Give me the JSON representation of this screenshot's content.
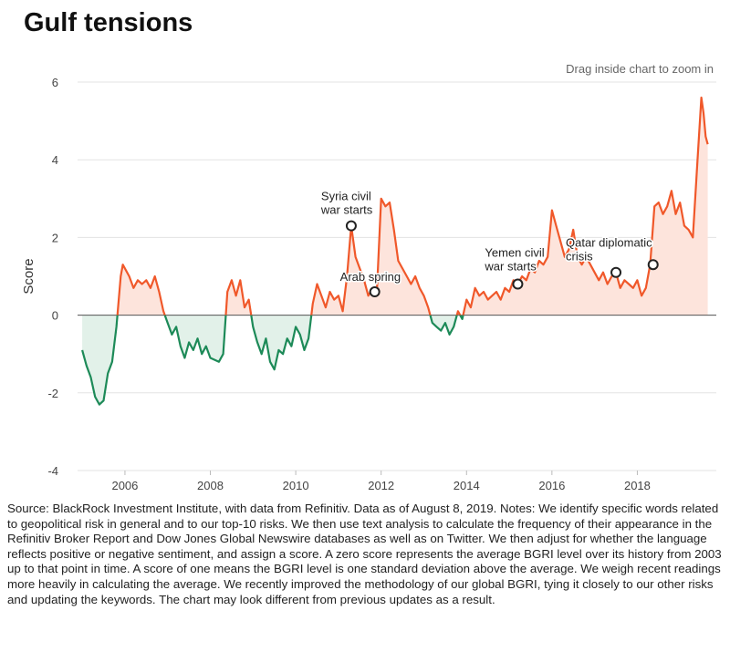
{
  "chart_data": {
    "type": "line",
    "title": "Gulf tensions",
    "hint": "Drag inside chart to zoom in",
    "y_label": "Score",
    "source": "Source: BlackRock Investment Institute, with data from Refinitiv. Data as of August 8, 2019. Notes: We identify specific words related to geopolitical risk in general and to our top-10 risks. We then use text analysis to calculate the frequency of their appearance in the Refinitiv Broker Report and Dow Jones Global Newswire databases as well as on Twitter. We then adjust for whether the language reflects positive or negative sentiment, and assign a score. A zero score represents the average BGRI level over its history from 2003 up to that point in time. A score of one means the BGRI level is one standard deviation above the average. We weigh recent readings more heavily in calculating the average. We recently improved the methodology of our global BGRI, tying it closely to our other risks and updating the keywords. The chart may look different from previous updates as a result.",
    "positive_color": "#f0582a",
    "positive_fill": "#fde4dc",
    "negative_color": "#1d8a58",
    "negative_fill": "#e2f1e9",
    "grid": true,
    "xlim": [
      2004.89,
      2019.85
    ],
    "xticks": [
      2006,
      2008,
      2010,
      2012,
      2014,
      2016,
      2018
    ],
    "ylim": [
      -4,
      6
    ],
    "yticks": [
      -4,
      -2,
      0,
      2,
      4,
      6
    ],
    "x": [
      2005.0,
      2005.1,
      2005.2,
      2005.3,
      2005.4,
      2005.5,
      2005.6,
      2005.7,
      2005.8,
      2005.9,
      2005.95,
      2006.1,
      2006.2,
      2006.3,
      2006.4,
      2006.5,
      2006.6,
      2006.7,
      2006.8,
      2006.9,
      2007.0,
      2007.1,
      2007.2,
      2007.3,
      2007.4,
      2007.5,
      2007.6,
      2007.7,
      2007.8,
      2007.9,
      2008.0,
      2008.2,
      2008.3,
      2008.4,
      2008.5,
      2008.6,
      2008.7,
      2008.8,
      2008.9,
      2009.0,
      2009.1,
      2009.2,
      2009.3,
      2009.4,
      2009.5,
      2009.6,
      2009.7,
      2009.8,
      2009.9,
      2010.0,
      2010.1,
      2010.2,
      2010.3,
      2010.4,
      2010.5,
      2010.6,
      2010.7,
      2010.8,
      2010.9,
      2011.0,
      2011.1,
      2011.2,
      2011.3,
      2011.4,
      2011.5,
      2011.6,
      2011.7,
      2011.8,
      2011.9,
      2012.0,
      2012.1,
      2012.2,
      2012.3,
      2012.4,
      2012.5,
      2012.6,
      2012.7,
      2012.8,
      2012.9,
      2013.0,
      2013.1,
      2013.2,
      2013.3,
      2013.4,
      2013.5,
      2013.6,
      2013.7,
      2013.8,
      2013.9,
      2014.0,
      2014.1,
      2014.2,
      2014.3,
      2014.4,
      2014.5,
      2014.6,
      2014.7,
      2014.8,
      2014.9,
      2015.0,
      2015.1,
      2015.2,
      2015.3,
      2015.4,
      2015.5,
      2015.6,
      2015.7,
      2015.8,
      2015.9,
      2016.0,
      2016.1,
      2016.2,
      2016.3,
      2016.4,
      2016.5,
      2016.6,
      2016.7,
      2016.8,
      2016.9,
      2017.0,
      2017.1,
      2017.2,
      2017.3,
      2017.4,
      2017.5,
      2017.6,
      2017.7,
      2017.8,
      2017.9,
      2018.0,
      2018.1,
      2018.2,
      2018.3,
      2018.4,
      2018.5,
      2018.6,
      2018.7,
      2018.8,
      2018.9,
      2019.0,
      2019.1,
      2019.2,
      2019.3,
      2019.4,
      2019.5,
      2019.55,
      2019.6,
      2019.65
    ],
    "values": [
      -0.9,
      -1.3,
      -1.6,
      -2.1,
      -2.3,
      -2.2,
      -1.5,
      -1.2,
      -0.3,
      1.0,
      1.3,
      1.0,
      0.7,
      0.9,
      0.8,
      0.9,
      0.7,
      1.0,
      0.6,
      0.1,
      -0.2,
      -0.5,
      -0.3,
      -0.8,
      -1.1,
      -0.7,
      -0.9,
      -0.6,
      -1.0,
      -0.8,
      -1.1,
      -1.2,
      -1.0,
      0.6,
      0.9,
      0.5,
      0.9,
      0.2,
      0.4,
      -0.3,
      -0.7,
      -1.0,
      -0.6,
      -1.2,
      -1.4,
      -0.9,
      -1.0,
      -0.6,
      -0.8,
      -0.3,
      -0.5,
      -0.9,
      -0.6,
      0.3,
      0.8,
      0.5,
      0.2,
      0.6,
      0.4,
      0.5,
      0.1,
      1.0,
      2.3,
      1.5,
      1.2,
      0.9,
      0.5,
      0.7,
      0.6,
      3.0,
      2.8,
      2.9,
      2.2,
      1.4,
      1.2,
      1.0,
      0.8,
      1.0,
      0.7,
      0.5,
      0.2,
      -0.2,
      -0.3,
      -0.4,
      -0.2,
      -0.5,
      -0.3,
      0.1,
      -0.1,
      0.4,
      0.2,
      0.7,
      0.5,
      0.6,
      0.4,
      0.5,
      0.6,
      0.4,
      0.7,
      0.6,
      0.9,
      0.8,
      1.0,
      0.9,
      1.2,
      1.1,
      1.4,
      1.3,
      1.5,
      2.7,
      2.3,
      1.9,
      1.5,
      1.7,
      2.2,
      1.5,
      1.3,
      1.5,
      1.3,
      1.1,
      0.9,
      1.1,
      0.8,
      1.0,
      1.1,
      0.7,
      0.9,
      0.8,
      0.7,
      0.9,
      0.5,
      0.7,
      1.3,
      2.8,
      2.9,
      2.6,
      2.8,
      3.2,
      2.6,
      2.9,
      2.3,
      2.2,
      2.0,
      3.8,
      5.6,
      5.2,
      4.6,
      4.4
    ],
    "annotations": [
      {
        "label": [
          "Syria civil",
          "war starts"
        ],
        "x": 2011.3,
        "y": 2.3
      },
      {
        "label": [
          "Arab spring"
        ],
        "x": 2011.85,
        "y": 0.6
      },
      {
        "label": [
          "Yemen civil",
          "war starts"
        ],
        "x": 2015.2,
        "y": 0.8
      },
      {
        "label": [
          "Qatar diplomatic",
          "crisis"
        ],
        "x": 2017.5,
        "y": 1.1
      },
      {
        "label": null,
        "x": 2018.37,
        "y": 1.3
      }
    ]
  }
}
